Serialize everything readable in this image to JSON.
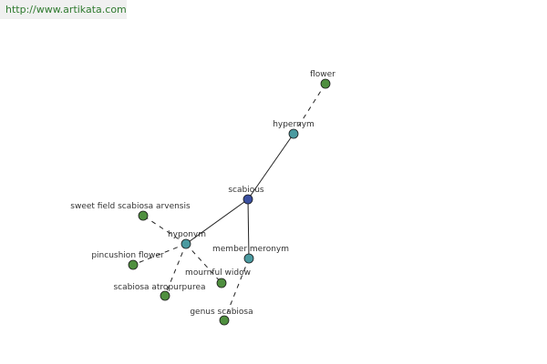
{
  "source_url": "http://www.artikata.com",
  "colors": {
    "root": "#3a4fa0",
    "relation": "#4a9aa0",
    "word": "#4f8f3f",
    "edge": "#222222",
    "banner": "#f0f0f0",
    "link": "#2f7a2f"
  },
  "graph": {
    "nodes": [
      {
        "id": "flower",
        "label": "flower",
        "kind": "word"
      },
      {
        "id": "hypernym",
        "label": "hypernym",
        "kind": "relation"
      },
      {
        "id": "scabious",
        "label": "scabious",
        "kind": "root"
      },
      {
        "id": "hyponym",
        "label": "hyponym",
        "kind": "relation"
      },
      {
        "id": "member-meronym",
        "label": "member meronym",
        "kind": "relation"
      },
      {
        "id": "sweet-field-scabiosa-arvensis",
        "label": "sweet field scabiosa arvensis",
        "kind": "word"
      },
      {
        "id": "pincushion-flower",
        "label": "pincushion flower",
        "kind": "word"
      },
      {
        "id": "scabiosa-atropurpurea",
        "label": "scabiosa atropurpurea",
        "kind": "word"
      },
      {
        "id": "mournful-widow",
        "label": "mournful widow",
        "kind": "word"
      },
      {
        "id": "genus-scabiosa",
        "label": "genus scabiosa",
        "kind": "word"
      }
    ],
    "edges": [
      {
        "from": "scabious",
        "to": "hypernym",
        "style": "solid"
      },
      {
        "from": "hypernym",
        "to": "flower",
        "style": "dashed"
      },
      {
        "from": "scabious",
        "to": "hyponym",
        "style": "solid"
      },
      {
        "from": "scabious",
        "to": "member-meronym",
        "style": "solid"
      },
      {
        "from": "hyponym",
        "to": "sweet-field-scabiosa-arvensis",
        "style": "dashed"
      },
      {
        "from": "hyponym",
        "to": "pincushion-flower",
        "style": "dashed"
      },
      {
        "from": "hyponym",
        "to": "scabiosa-atropurpurea",
        "style": "dashed"
      },
      {
        "from": "hyponym",
        "to": "mournful-widow",
        "style": "dashed"
      },
      {
        "from": "member-meronym",
        "to": "genus-scabiosa",
        "style": "dashed"
      }
    ]
  }
}
